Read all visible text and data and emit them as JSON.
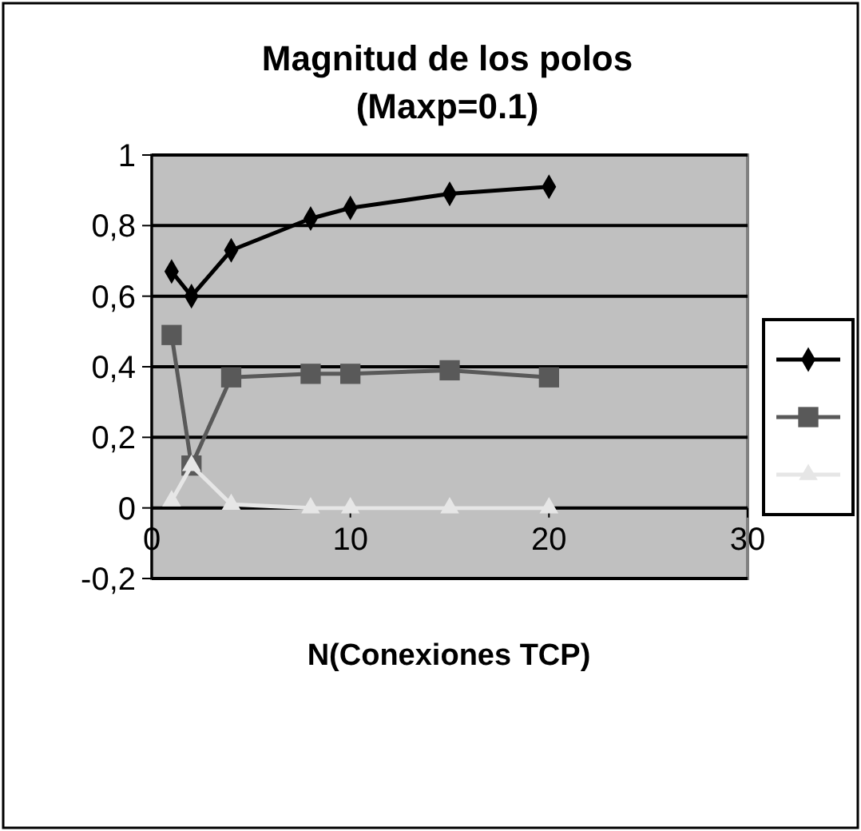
{
  "chart_data": {
    "type": "line",
    "title": "Magnitud de los polos\n(Maxp=0.1)",
    "xlabel": "N(Conexiones TCP)",
    "x": [
      1,
      2,
      4,
      8,
      10,
      15,
      20
    ],
    "series": [
      {
        "color": "#000000",
        "marker": "diamond",
        "values": [
          0.67,
          0.6,
          0.73,
          0.82,
          0.85,
          0.89,
          0.91
        ]
      },
      {
        "color": "#595959",
        "marker": "square",
        "values": [
          0.49,
          0.12,
          0.37,
          0.38,
          0.38,
          0.39,
          0.37
        ]
      },
      {
        "color": "#e6e6e6",
        "marker": "triangle",
        "values": [
          0.02,
          0.12,
          0.01,
          0,
          0,
          0,
          0
        ]
      }
    ],
    "xlim": [
      0,
      30
    ],
    "xticks": [
      0,
      10,
      20,
      30
    ],
    "ylim": [
      -0.2,
      1
    ],
    "yticks": [
      {
        "value": -0.2,
        "label": "-0,2"
      },
      0,
      {
        "value": 0.2,
        "label": "0,2"
      },
      {
        "value": 0.4,
        "label": "0,4"
      },
      {
        "value": 0.6,
        "label": "0,6"
      },
      {
        "value": 0.8,
        "label": "0,8"
      },
      1
    ],
    "grid": "y"
  }
}
